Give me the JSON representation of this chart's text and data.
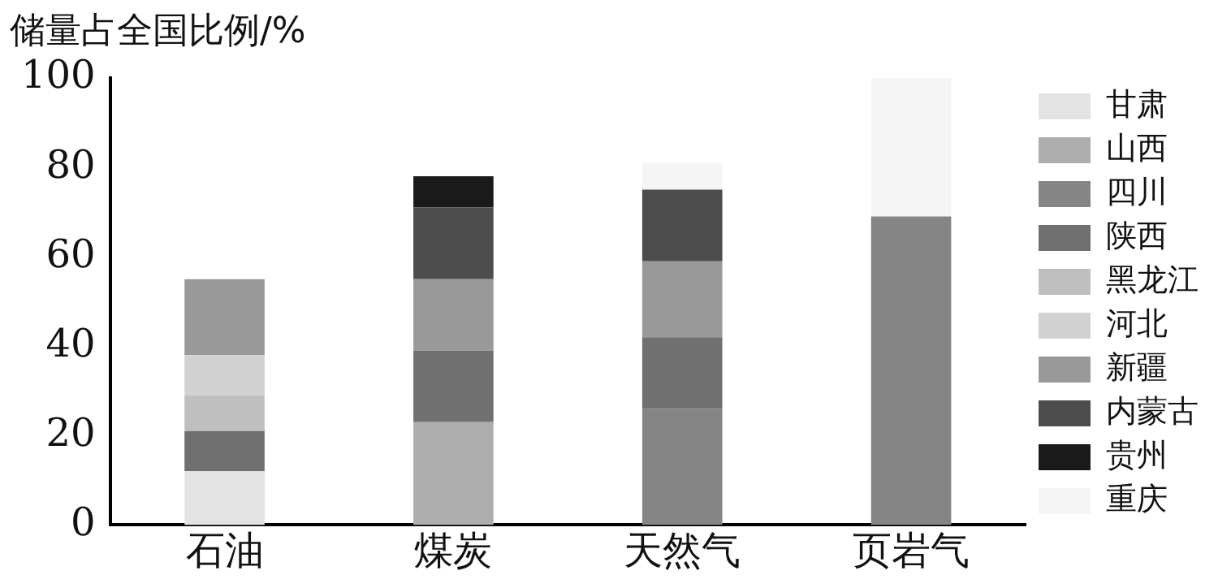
{
  "chart_data": {
    "type": "bar",
    "stacked": true,
    "ylabel": "储量占全国比例/%",
    "categories": [
      "石油",
      "煤炭",
      "天然气",
      "页岩气"
    ],
    "ylim": [
      0,
      100
    ],
    "yticks": [
      0,
      20,
      40,
      60,
      80,
      100
    ],
    "grid": false,
    "legend": "right",
    "series": [
      {
        "name": "甘肃",
        "color": "#e3e3e3",
        "values": [
          12,
          null,
          null,
          null
        ]
      },
      {
        "name": "山西",
        "color": "#adadad",
        "values": [
          null,
          23,
          null,
          null
        ]
      },
      {
        "name": "四川",
        "color": "#858585",
        "values": [
          null,
          null,
          26,
          69
        ]
      },
      {
        "name": "陕西",
        "color": "#707070",
        "values": [
          9,
          16,
          16,
          null
        ]
      },
      {
        "name": "黑龙江",
        "color": "#bfbfbf",
        "values": [
          8,
          null,
          null,
          null
        ]
      },
      {
        "name": "河北",
        "color": "#d1d1d1",
        "values": [
          9,
          null,
          null,
          null
        ]
      },
      {
        "name": "新疆",
        "color": "#999999",
        "values": [
          17,
          16,
          17,
          null
        ]
      },
      {
        "name": "内蒙古",
        "color": "#4d4d4d",
        "values": [
          null,
          16,
          16,
          null
        ]
      },
      {
        "name": "贵州",
        "color": "#1a1a1a",
        "values": [
          null,
          7,
          null,
          null
        ]
      },
      {
        "name": "重庆",
        "color": "#f5f5f5",
        "values": [
          null,
          null,
          6,
          31
        ]
      }
    ]
  }
}
